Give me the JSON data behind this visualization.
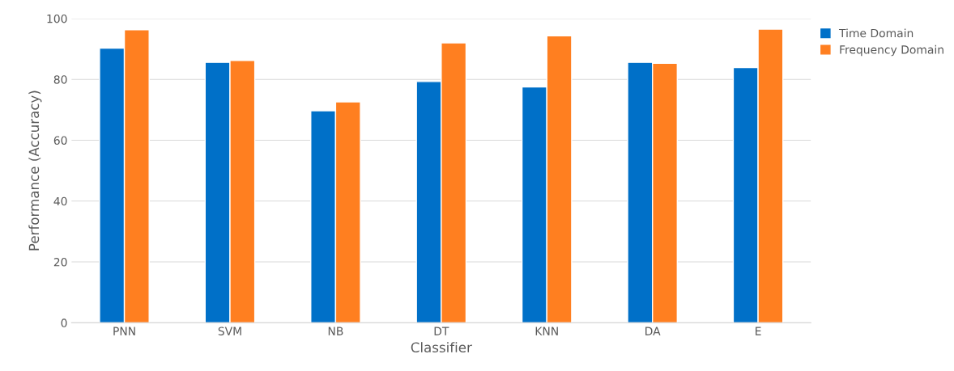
{
  "chart_data": {
    "type": "bar",
    "xlabel": "Classifier",
    "ylabel": "Performance (Accuracy)",
    "categories": [
      "PNN",
      "SVM",
      "NB",
      "DT",
      "KNN",
      "DA",
      "E"
    ],
    "series": [
      {
        "name": "Time Domain",
        "color": "#0070c8",
        "values": [
          90.3,
          85.6,
          69.7,
          79.3,
          77.5,
          85.6,
          83.9
        ]
      },
      {
        "name": "Frequency Domain",
        "color": "#ff7f20",
        "values": [
          96.3,
          86.2,
          72.6,
          92.0,
          94.3,
          85.3,
          96.5
        ]
      }
    ],
    "ylim": [
      0,
      100
    ],
    "yticks": [
      0,
      20,
      40,
      60,
      80,
      100
    ],
    "grid": "y",
    "legend": "top right"
  }
}
